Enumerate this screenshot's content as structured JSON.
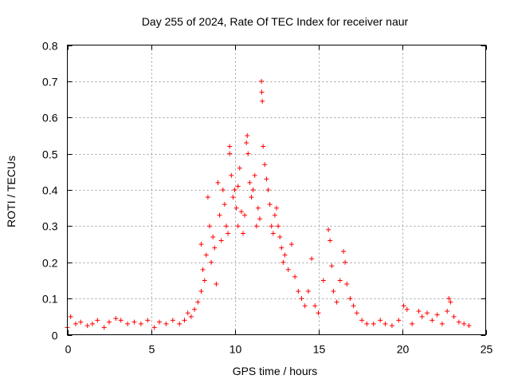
{
  "chart_data": {
    "type": "scatter",
    "title": "Day 255 of 2024, Rate Of TEC Index for receiver naur",
    "xlabel": "GPS time / hours",
    "ylabel": "ROTI / TECUs",
    "xlim": [
      0,
      25
    ],
    "ylim": [
      0,
      0.8
    ],
    "xticks": [
      0,
      5,
      10,
      15,
      20,
      25
    ],
    "yticks": [
      0,
      0.1,
      0.2,
      0.3,
      0.4,
      0.5,
      0.6,
      0.7,
      0.8
    ],
    "grid": true,
    "marker": "+",
    "color": "#ff0000",
    "series": [
      {
        "name": "ROTI",
        "points": [
          [
            0.0,
            0.02
          ],
          [
            0.2,
            0.05
          ],
          [
            0.5,
            0.03
          ],
          [
            0.8,
            0.035
          ],
          [
            1.2,
            0.025
          ],
          [
            1.5,
            0.03
          ],
          [
            1.8,
            0.04
          ],
          [
            2.2,
            0.02
          ],
          [
            2.5,
            0.035
          ],
          [
            2.9,
            0.045
          ],
          [
            3.2,
            0.04
          ],
          [
            3.6,
            0.03
          ],
          [
            4.0,
            0.035
          ],
          [
            4.4,
            0.03
          ],
          [
            4.8,
            0.04
          ],
          [
            5.2,
            0.02
          ],
          [
            5.5,
            0.035
          ],
          [
            5.9,
            0.03
          ],
          [
            6.3,
            0.04
          ],
          [
            6.7,
            0.03
          ],
          [
            7.0,
            0.04
          ],
          [
            7.2,
            0.06
          ],
          [
            7.4,
            0.05
          ],
          [
            7.6,
            0.07
          ],
          [
            7.8,
            0.09
          ],
          [
            8.0,
            0.12
          ],
          [
            8.0,
            0.25
          ],
          [
            8.1,
            0.18
          ],
          [
            8.2,
            0.15
          ],
          [
            8.3,
            0.22
          ],
          [
            8.4,
            0.38
          ],
          [
            8.5,
            0.3
          ],
          [
            8.6,
            0.2
          ],
          [
            8.7,
            0.27
          ],
          [
            8.8,
            0.24
          ],
          [
            8.9,
            0.14
          ],
          [
            9.0,
            0.42
          ],
          [
            9.1,
            0.33
          ],
          [
            9.2,
            0.26
          ],
          [
            9.3,
            0.4
          ],
          [
            9.4,
            0.36
          ],
          [
            9.5,
            0.3
          ],
          [
            9.6,
            0.28
          ],
          [
            9.7,
            0.52
          ],
          [
            9.7,
            0.5
          ],
          [
            9.8,
            0.44
          ],
          [
            9.9,
            0.38
          ],
          [
            10.0,
            0.4
          ],
          [
            10.1,
            0.35
          ],
          [
            10.2,
            0.3
          ],
          [
            10.2,
            0.41
          ],
          [
            10.3,
            0.46
          ],
          [
            10.4,
            0.34
          ],
          [
            10.5,
            0.28
          ],
          [
            10.6,
            0.33
          ],
          [
            10.7,
            0.53
          ],
          [
            10.75,
            0.55
          ],
          [
            10.8,
            0.5
          ],
          [
            10.9,
            0.42
          ],
          [
            11.0,
            0.38
          ],
          [
            11.1,
            0.4
          ],
          [
            11.2,
            0.44
          ],
          [
            11.3,
            0.3
          ],
          [
            11.4,
            0.35
          ],
          [
            11.5,
            0.32
          ],
          [
            11.6,
            0.7
          ],
          [
            11.62,
            0.67
          ],
          [
            11.65,
            0.645
          ],
          [
            11.7,
            0.52
          ],
          [
            11.8,
            0.47
          ],
          [
            11.9,
            0.43
          ],
          [
            12.0,
            0.4
          ],
          [
            12.1,
            0.36
          ],
          [
            12.2,
            0.3
          ],
          [
            12.3,
            0.28
          ],
          [
            12.4,
            0.33
          ],
          [
            12.5,
            0.35
          ],
          [
            12.6,
            0.3
          ],
          [
            12.7,
            0.27
          ],
          [
            12.8,
            0.24
          ],
          [
            12.9,
            0.2
          ],
          [
            13.0,
            0.22
          ],
          [
            13.2,
            0.18
          ],
          [
            13.4,
            0.25
          ],
          [
            13.6,
            0.16
          ],
          [
            13.8,
            0.12
          ],
          [
            14.0,
            0.1
          ],
          [
            14.2,
            0.08
          ],
          [
            14.4,
            0.12
          ],
          [
            14.6,
            0.21
          ],
          [
            14.8,
            0.08
          ],
          [
            15.0,
            0.06
          ],
          [
            15.3,
            0.15
          ],
          [
            15.6,
            0.29
          ],
          [
            15.7,
            0.26
          ],
          [
            15.8,
            0.19
          ],
          [
            15.9,
            0.12
          ],
          [
            16.1,
            0.09
          ],
          [
            16.3,
            0.15
          ],
          [
            16.5,
            0.23
          ],
          [
            16.6,
            0.2
          ],
          [
            16.7,
            0.14
          ],
          [
            16.9,
            0.1
          ],
          [
            17.1,
            0.08
          ],
          [
            17.3,
            0.06
          ],
          [
            17.6,
            0.04
          ],
          [
            17.9,
            0.03
          ],
          [
            18.3,
            0.03
          ],
          [
            18.7,
            0.04
          ],
          [
            19.0,
            0.03
          ],
          [
            19.4,
            0.025
          ],
          [
            19.8,
            0.04
          ],
          [
            20.1,
            0.08
          ],
          [
            20.3,
            0.07
          ],
          [
            20.6,
            0.03
          ],
          [
            21.0,
            0.065
          ],
          [
            21.2,
            0.05
          ],
          [
            21.5,
            0.06
          ],
          [
            21.8,
            0.04
          ],
          [
            22.1,
            0.055
          ],
          [
            22.4,
            0.03
          ],
          [
            22.7,
            0.065
          ],
          [
            22.8,
            0.1
          ],
          [
            22.9,
            0.09
          ],
          [
            23.1,
            0.05
          ],
          [
            23.4,
            0.035
          ],
          [
            23.7,
            0.03
          ],
          [
            24.0,
            0.025
          ]
        ]
      }
    ]
  }
}
